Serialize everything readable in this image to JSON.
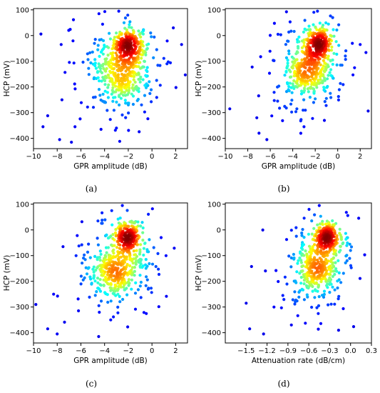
{
  "chart_data": [
    {
      "id": "a",
      "type": "scatter",
      "panel_label": "(a)",
      "xlabel": "GPR amplitude (dB)",
      "ylabel": "HCP (mV)",
      "xlim": [
        -10,
        3
      ],
      "ylim": [
        -440,
        105
      ],
      "xticks": [
        -10,
        -8,
        -6,
        -4,
        -2,
        0,
        2
      ],
      "yticks": [
        -400,
        -300,
        -200,
        -100,
        0,
        100
      ],
      "color_scale": "jet (point density)",
      "clusters": [
        {
          "cx": -2.0,
          "cy": -30,
          "sx": 0.6,
          "sy": 28,
          "n": 180
        },
        {
          "cx": -2.3,
          "cy": -160,
          "sx": 0.9,
          "sy": 45,
          "n": 160
        },
        {
          "cx": -2.5,
          "cy": -100,
          "sx": 1.4,
          "sy": 70,
          "n": 180
        },
        {
          "cx": -3.0,
          "cy": -140,
          "sx": 2.2,
          "sy": 110,
          "n": 140
        }
      ],
      "outliers": [
        {
          "x": -9.2,
          "y": -355
        },
        {
          "x": -8.8,
          "y": -312
        },
        {
          "x": -7.8,
          "y": -405
        },
        {
          "x": -7.6,
          "y": -250
        },
        {
          "x": -6.8,
          "y": -415
        },
        {
          "x": -6.5,
          "y": -355
        },
        {
          "x": 2.5,
          "y": -35
        },
        {
          "x": 1.8,
          "y": 30
        },
        {
          "x": -2.8,
          "y": 95
        },
        {
          "x": -3.0,
          "y": -360
        },
        {
          "x": -4.3,
          "y": -365
        },
        {
          "x": 0.4,
          "y": -55
        }
      ]
    },
    {
      "id": "b",
      "type": "scatter",
      "panel_label": "(b)",
      "xlabel": "GPR amplitude (dB)",
      "ylabel": "HCP (mV)",
      "xlim": [
        -10,
        3
      ],
      "ylim": [
        -440,
        105
      ],
      "xticks": [
        -10,
        -8,
        -6,
        -4,
        -2,
        0,
        2
      ],
      "yticks": [
        -400,
        -300,
        -200,
        -100,
        0,
        100
      ],
      "color_scale": "jet (point density)",
      "clusters": [
        {
          "cx": -1.6,
          "cy": -25,
          "sx": 0.5,
          "sy": 28,
          "n": 190
        },
        {
          "cx": -2.8,
          "cy": -150,
          "sx": 0.9,
          "sy": 45,
          "n": 150
        },
        {
          "cx": -2.4,
          "cy": -100,
          "sx": 1.3,
          "sy": 70,
          "n": 170
        },
        {
          "cx": -2.8,
          "cy": -150,
          "sx": 2.0,
          "sy": 105,
          "n": 130
        }
      ],
      "outliers": [
        {
          "x": -9.6,
          "y": -285
        },
        {
          "x": -7.2,
          "y": -320
        },
        {
          "x": -7.0,
          "y": -380
        },
        {
          "x": -6.3,
          "y": -405
        },
        {
          "x": 2.0,
          "y": -35
        },
        {
          "x": 1.3,
          "y": -30
        },
        {
          "x": -1.8,
          "y": 95
        },
        {
          "x": -3.0,
          "y": -355
        }
      ]
    },
    {
      "id": "c",
      "type": "scatter",
      "panel_label": "(c)",
      "xlabel": "GPR amplitude (dB)",
      "ylabel": "HCP (mV)",
      "xlim": [
        -10,
        3
      ],
      "ylim": [
        -440,
        105
      ],
      "xticks": [
        -10,
        -8,
        -6,
        -4,
        -2,
        0,
        2
      ],
      "yticks": [
        -400,
        -300,
        -200,
        -100,
        0,
        100
      ],
      "color_scale": "jet (point density)",
      "clusters": [
        {
          "cx": -2.0,
          "cy": -25,
          "sx": 0.55,
          "sy": 28,
          "n": 190
        },
        {
          "cx": -3.2,
          "cy": -170,
          "sx": 0.9,
          "sy": 40,
          "n": 160
        },
        {
          "cx": -2.6,
          "cy": -110,
          "sx": 1.3,
          "sy": 70,
          "n": 170
        },
        {
          "cx": -3.0,
          "cy": -160,
          "sx": 2.0,
          "sy": 105,
          "n": 120
        }
      ],
      "outliers": [
        {
          "x": -9.8,
          "y": -290
        },
        {
          "x": -8.8,
          "y": -385
        },
        {
          "x": -8.0,
          "y": -405
        },
        {
          "x": -8.3,
          "y": -250
        },
        {
          "x": -6.2,
          "y": -315
        },
        {
          "x": -4.5,
          "y": -415
        },
        {
          "x": -2.5,
          "y": 95
        },
        {
          "x": -0.5,
          "y": -115
        },
        {
          "x": -0.3,
          "y": -85
        },
        {
          "x": -3.4,
          "y": 75
        }
      ]
    },
    {
      "id": "d",
      "type": "scatter",
      "panel_label": "(d)",
      "xlabel": "Attenuation rate (dB/cm)",
      "ylabel": "HCP (mV)",
      "xlim": [
        -1.8,
        0.3
      ],
      "ylim": [
        -440,
        105
      ],
      "xticks": [
        -1.5,
        -1.2,
        -0.9,
        -0.6,
        -0.3,
        0.0,
        0.3
      ],
      "xtick_labels": [
        "−1.5",
        "−1.2",
        "−0.9",
        "−0.6",
        "−0.3",
        "0.0",
        "0.3"
      ],
      "yticks": [
        -400,
        -300,
        -200,
        -100,
        0,
        100
      ],
      "color_scale": "jet (point density)",
      "clusters": [
        {
          "cx": -0.33,
          "cy": -25,
          "sx": 0.08,
          "sy": 28,
          "n": 190
        },
        {
          "cx": -0.5,
          "cy": -160,
          "sx": 0.14,
          "sy": 40,
          "n": 160
        },
        {
          "cx": -0.45,
          "cy": -105,
          "sx": 0.2,
          "sy": 70,
          "n": 170
        },
        {
          "cx": -0.5,
          "cy": -150,
          "sx": 0.32,
          "sy": 105,
          "n": 120
        }
      ],
      "outliers": [
        {
          "x": -1.5,
          "y": -285
        },
        {
          "x": -1.45,
          "y": -385
        },
        {
          "x": -1.25,
          "y": -405
        },
        {
          "x": -1.1,
          "y": -300
        },
        {
          "x": -0.85,
          "y": -370
        },
        {
          "x": -0.45,
          "y": 95
        },
        {
          "x": -0.05,
          "y": -120
        },
        {
          "x": 0.0,
          "y": -80
        }
      ]
    }
  ]
}
